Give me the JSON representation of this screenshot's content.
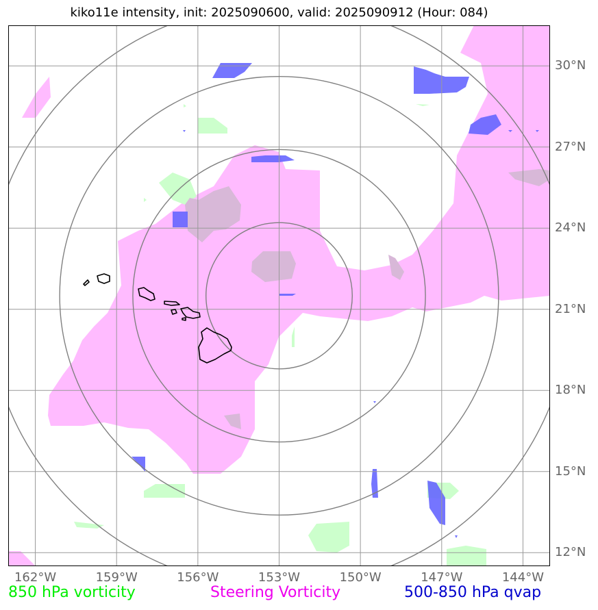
{
  "title": "kiko11e intensity, init: 2025090600, valid: 2025090912 (Hour: 084)",
  "map": {
    "projection": "lat-lon",
    "lon_range": [
      -163,
      -143
    ],
    "lat_range": [
      11.5,
      31.5
    ],
    "center_lon": -153.0,
    "center_lat": 21.5,
    "range_rings_deg": [
      2.7,
      5.4,
      8.1,
      10.8
    ],
    "grid_color": "#999999",
    "ring_color": "#808080",
    "coastline_color": "#000000"
  },
  "axes": {
    "lat_labels": [
      {
        "lat": 30,
        "text": "30°N"
      },
      {
        "lat": 27,
        "text": "27°N"
      },
      {
        "lat": 24,
        "text": "24°N"
      },
      {
        "lat": 21,
        "text": "21°N"
      },
      {
        "lat": 18,
        "text": "18°N"
      },
      {
        "lat": 15,
        "text": "15°N"
      },
      {
        "lat": 12,
        "text": "12°N"
      }
    ],
    "lon_labels": [
      {
        "lon": -162,
        "text": "162°W"
      },
      {
        "lon": -159,
        "text": "159°W"
      },
      {
        "lon": -156,
        "text": "156°W"
      },
      {
        "lon": -153,
        "text": "153°W"
      },
      {
        "lon": -150,
        "text": "150°W"
      },
      {
        "lon": -147,
        "text": "147°W"
      },
      {
        "lon": -144,
        "text": "144°W"
      }
    ]
  },
  "layers": {
    "steering_vorticity_color": "#ffbbff",
    "vorticity_850_color": "#ccffcc",
    "qvap_color": "#6666ff",
    "overlap_color": "#d8b8d8"
  },
  "legend": {
    "vorticity_850": {
      "label": "850 hPa vorticity",
      "color": "#00ee00"
    },
    "steering": {
      "label": "Steering Vorticity",
      "color": "#ee00ee"
    },
    "qvap": {
      "label": "500-850 hPa qvap",
      "color": "#0000cc"
    }
  }
}
